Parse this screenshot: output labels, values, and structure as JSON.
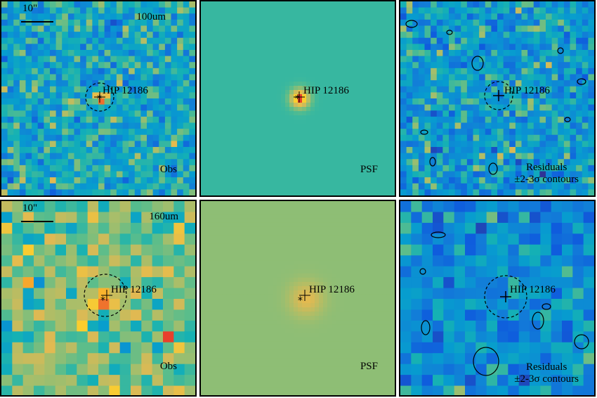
{
  "rows": [
    {
      "band": "100um",
      "scale": "10\"",
      "source": "HIP 12186",
      "obs_label": "Obs",
      "psf_label": "PSF",
      "res_label_1": "Residuals",
      "res_label_2": "±2-3σ contours"
    },
    {
      "band": "160um",
      "scale": "10\"",
      "source": "HIP 12186",
      "obs_label": "Obs",
      "psf_label": "PSF",
      "res_label_1": "Residuals",
      "res_label_2": "±2-3σ contours"
    }
  ],
  "colors": {
    "bg_psf_top": "#5aab9f",
    "bg_psf_bottom": "#8cbd6b",
    "peak": "#e8402c",
    "low": "#3b2a8c"
  }
}
